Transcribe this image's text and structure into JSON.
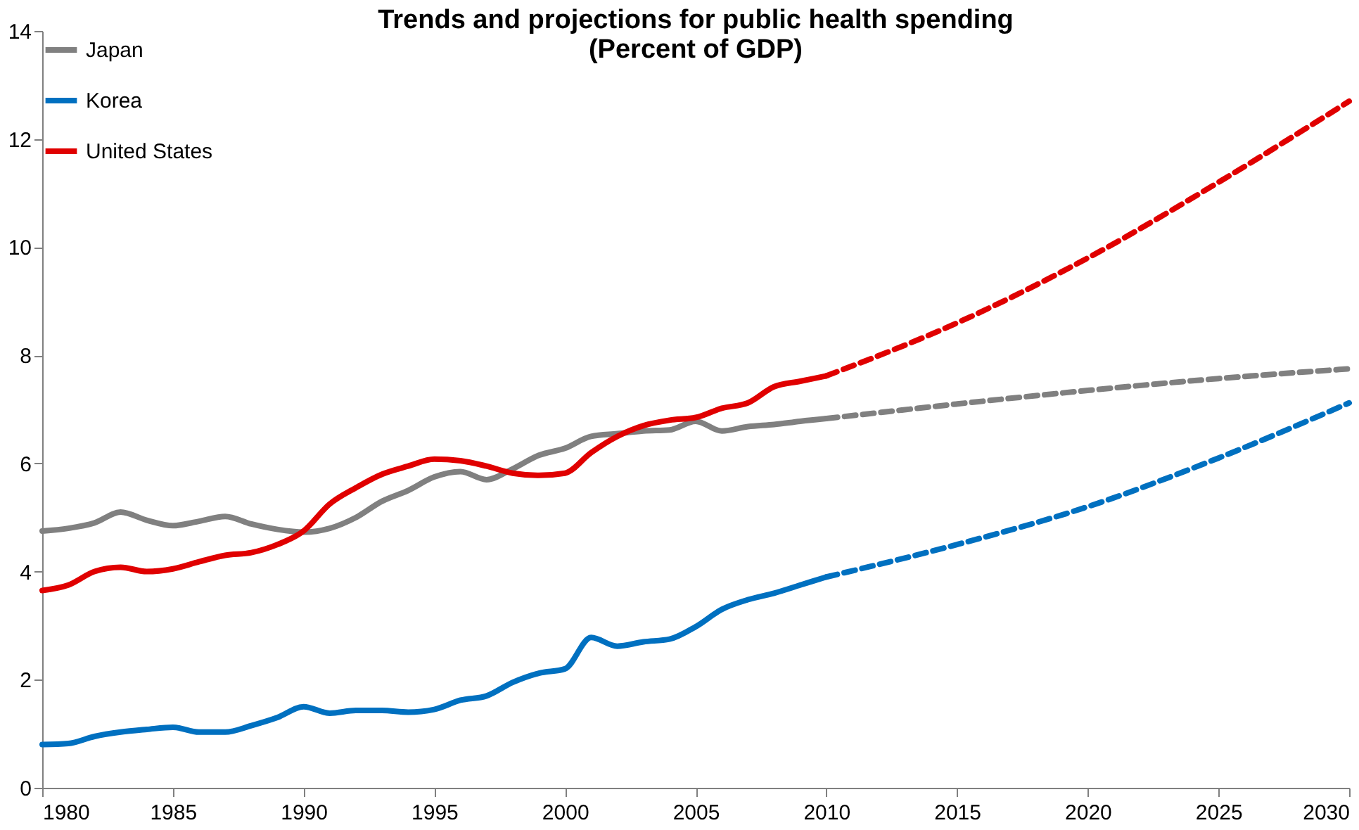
{
  "chart_data": {
    "type": "line",
    "title": [
      "Trends and projections for public health spending",
      "(Percent of GDP)"
    ],
    "series": [
      {
        "name": "Japan",
        "color": "#808080",
        "line_style": "solid",
        "x": [
          1980,
          1981,
          1982,
          1983,
          1984,
          1985,
          1986,
          1987,
          1988,
          1989,
          1990,
          1991,
          1992,
          1993,
          1994,
          1995,
          1996,
          1997,
          1998,
          1999,
          2000,
          2001,
          2002,
          2003,
          2004,
          2005,
          2006,
          2007,
          2008,
          2009,
          2010
        ],
        "values": [
          4.75,
          4.8,
          4.9,
          5.1,
          4.95,
          4.85,
          4.93,
          5.02,
          4.88,
          4.78,
          4.73,
          4.8,
          5.0,
          5.3,
          5.5,
          5.75,
          5.85,
          5.7,
          5.9,
          6.15,
          6.28,
          6.5,
          6.55,
          6.6,
          6.62,
          6.78,
          6.6,
          6.68,
          6.72,
          6.78,
          6.83
        ]
      },
      {
        "name": "Korea",
        "color": "#0070c0",
        "line_style": "solid",
        "x": [
          1980,
          1981,
          1982,
          1983,
          1984,
          1985,
          1986,
          1987,
          1988,
          1989,
          1990,
          1991,
          1992,
          1993,
          1994,
          1995,
          1996,
          1997,
          1998,
          1999,
          2000,
          2001,
          2002,
          2003,
          2004,
          2005,
          2006,
          2007,
          2008,
          2009,
          2010
        ],
        "values": [
          0.8,
          0.82,
          0.95,
          1.03,
          1.08,
          1.12,
          1.03,
          1.03,
          1.15,
          1.3,
          1.5,
          1.38,
          1.43,
          1.43,
          1.4,
          1.45,
          1.62,
          1.7,
          1.95,
          2.12,
          2.2,
          2.78,
          2.62,
          2.7,
          2.75,
          2.98,
          3.3,
          3.48,
          3.6,
          3.75,
          3.9
        ]
      },
      {
        "name": "United States",
        "color": "#e00000",
        "line_style": "solid",
        "x": [
          1980,
          1981,
          1982,
          1983,
          1984,
          1985,
          1986,
          1987,
          1988,
          1989,
          1990,
          1991,
          1992,
          1993,
          1994,
          1995,
          1996,
          1997,
          1998,
          1999,
          2000,
          2001,
          2002,
          2003,
          2004,
          2005,
          2006,
          2007,
          2008,
          2009,
          2010
        ],
        "values": [
          3.65,
          3.75,
          4.0,
          4.08,
          4.0,
          4.05,
          4.18,
          4.3,
          4.35,
          4.5,
          4.75,
          5.25,
          5.55,
          5.8,
          5.95,
          6.08,
          6.05,
          5.95,
          5.82,
          5.78,
          5.82,
          6.2,
          6.5,
          6.7,
          6.8,
          6.85,
          7.02,
          7.12,
          7.42,
          7.52,
          7.62
        ]
      },
      {
        "color": "#808080",
        "line_style": "dashed",
        "x": [
          2010,
          2015,
          2020,
          2025,
          2030
        ],
        "values": [
          6.83,
          7.1,
          7.35,
          7.57,
          7.75
        ]
      },
      {
        "color": "#0070c0",
        "line_style": "dashed",
        "x": [
          2010,
          2015,
          2020,
          2025,
          2030
        ],
        "values": [
          3.9,
          4.5,
          5.2,
          6.1,
          7.12
        ]
      },
      {
        "color": "#e00000",
        "line_style": "dashed",
        "x": [
          2010,
          2015,
          2020,
          2025,
          2030
        ],
        "values": [
          7.62,
          8.6,
          9.8,
          11.2,
          12.7
        ]
      }
    ],
    "xlim": [
      1980,
      2030
    ],
    "xticks": [
      1980,
      1985,
      1990,
      1995,
      2000,
      2005,
      2010,
      2015,
      2020,
      2025,
      2030
    ],
    "ylim": [
      0,
      14
    ],
    "yticks": [
      0,
      2,
      4,
      6,
      8,
      10,
      12,
      14
    ],
    "grid": false,
    "legend": "top left",
    "marker": "none"
  }
}
